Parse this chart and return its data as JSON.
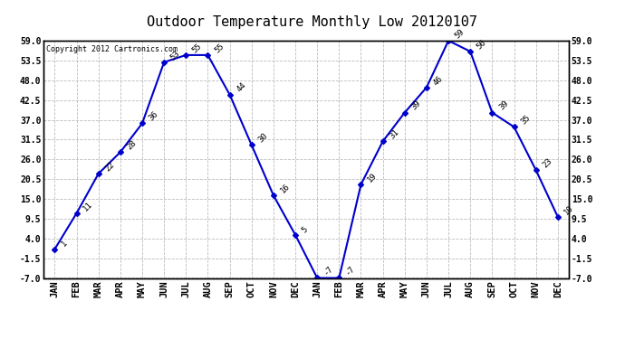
{
  "title": "Outdoor Temperature Monthly Low 20120107",
  "copyright_text": "Copyright 2012 Cartronics.com",
  "months": [
    "JAN",
    "FEB",
    "MAR",
    "APR",
    "MAY",
    "JUN",
    "JUL",
    "AUG",
    "SEP",
    "OCT",
    "NOV",
    "DEC",
    "JAN",
    "FEB",
    "MAR",
    "APR",
    "MAY",
    "JUN",
    "JUL",
    "AUG",
    "SEP",
    "OCT",
    "NOV",
    "DEC"
  ],
  "values": [
    1,
    11,
    22,
    28,
    36,
    53,
    55,
    55,
    44,
    30,
    16,
    5,
    -7,
    -7,
    19,
    31,
    39,
    46,
    59,
    56,
    39,
    35,
    23,
    10
  ],
  "line_color": "#0000cc",
  "marker": "D",
  "marker_size": 3,
  "ylim_min": -7.0,
  "ylim_max": 59.0,
  "yticks": [
    -7.0,
    -1.5,
    4.0,
    9.5,
    15.0,
    20.5,
    26.0,
    31.5,
    37.0,
    42.5,
    48.0,
    53.5,
    59.0
  ],
  "ytick_labels": [
    "-7.0",
    "-1.5",
    "4.0",
    "9.5",
    "15.0",
    "20.5",
    "26.0",
    "31.5",
    "37.0",
    "42.5",
    "48.0",
    "53.5",
    "59.0"
  ],
  "background_color": "#ffffff",
  "plot_bg_color": "#ffffff",
  "grid_color": "#bbbbbb",
  "title_fontsize": 11,
  "tick_fontsize": 7,
  "label_fontsize": 7.5,
  "copyright_fontsize": 6
}
